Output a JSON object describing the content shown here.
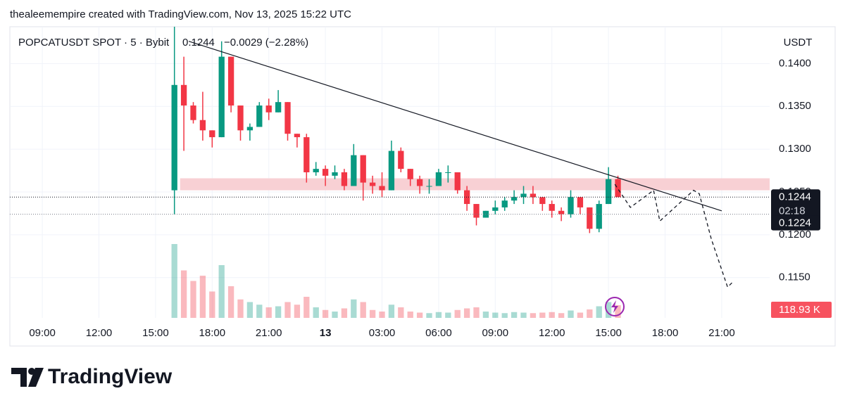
{
  "header": "thealeemempire created with TradingView.com, Nov 13, 2025 15:22 UTC",
  "brand": "TradingView",
  "chart_data": {
    "type": "candlestick",
    "currency": "USDT",
    "legend_change": "−0.0029 (−2.28%)",
    "last_price": 0.1244,
    "countdown": "02:18",
    "low_tag": 0.1224,
    "x": [
      7,
      7.5,
      8,
      8.5,
      9,
      9.5,
      10,
      10.5,
      11,
      11.5,
      12,
      12.5,
      13,
      13.5,
      14,
      14.5,
      15,
      15.5,
      16,
      16.5,
      17,
      17.5,
      18,
      18.5,
      19,
      19.5,
      20,
      20.5,
      21,
      21.5,
      22,
      22.5,
      23,
      23.5,
      24,
      24.5,
      25,
      25.5,
      26,
      26.5,
      27,
      27.5,
      28,
      28.5,
      29,
      29.5,
      30,
      30.5
    ],
    "series": [
      {
        "name": "POPCATUSDT SPOT · 5 · Bybit",
        "up_color": "#089981",
        "down_color": "#f23645",
        "open": [
          0.1252,
          0.1375,
          0.1351,
          0.1334,
          0.1322,
          0.1314,
          0.1408,
          0.1351,
          0.1322,
          0.1326,
          0.1351,
          0.1343,
          0.1355,
          0.1318,
          0.1314,
          0.1273,
          0.1277,
          0.1269,
          0.1273,
          0.1257,
          0.1293,
          0.1261,
          0.1257,
          0.1252,
          0.1298,
          0.1277,
          0.1265,
          0.1257,
          0.1257,
          0.1273,
          0.1273,
          0.1252,
          0.1236,
          0.122,
          0.1228,
          0.1232,
          0.124,
          0.1244,
          0.1248,
          0.1244,
          0.1236,
          0.1228,
          0.1224,
          0.1244,
          0.1232,
          0.1207,
          0.1236,
          0.1265
        ],
        "high": [
          0.1443,
          0.1408,
          0.1355,
          0.1367,
          0.1322,
          0.1426,
          0.1408,
          0.1351,
          0.133,
          0.1355,
          0.1359,
          0.1369,
          0.1355,
          0.1318,
          0.1318,
          0.1285,
          0.1281,
          0.1281,
          0.1277,
          0.1306,
          0.1293,
          0.1269,
          0.1273,
          0.131,
          0.1302,
          0.1277,
          0.1269,
          0.1265,
          0.1277,
          0.1281,
          0.1273,
          0.1257,
          0.1236,
          0.1228,
          0.124,
          0.1244,
          0.1252,
          0.1257,
          0.1257,
          0.1244,
          0.124,
          0.1232,
          0.1252,
          0.1244,
          0.1232,
          0.124,
          0.1279,
          0.1269
        ],
        "low": [
          0.1224,
          0.1298,
          0.133,
          0.131,
          0.1302,
          0.1314,
          0.1343,
          0.131,
          0.131,
          0.1326,
          0.1334,
          0.1343,
          0.131,
          0.1302,
          0.1261,
          0.1269,
          0.1257,
          0.1265,
          0.1252,
          0.1257,
          0.124,
          0.1248,
          0.1244,
          0.1252,
          0.1273,
          0.1257,
          0.1248,
          0.1248,
          0.1257,
          0.1261,
          0.1248,
          0.1228,
          0.1211,
          0.122,
          0.1224,
          0.1228,
          0.1236,
          0.1236,
          0.1236,
          0.1228,
          0.122,
          0.1216,
          0.122,
          0.1224,
          0.1202,
          0.1203,
          0.1236,
          0.1244
        ],
        "close": [
          0.1375,
          0.1351,
          0.1334,
          0.1322,
          0.1314,
          0.1408,
          0.1351,
          0.1322,
          0.1326,
          0.1351,
          0.1343,
          0.1355,
          0.1318,
          0.1314,
          0.1273,
          0.1277,
          0.1269,
          0.1273,
          0.1257,
          0.1293,
          0.1261,
          0.1257,
          0.1252,
          0.1298,
          0.1277,
          0.1265,
          0.1257,
          0.1257,
          0.1273,
          0.1273,
          0.1252,
          0.1236,
          0.122,
          0.1228,
          0.1232,
          0.124,
          0.1244,
          0.1248,
          0.1244,
          0.1236,
          0.1228,
          0.1224,
          0.1244,
          0.1232,
          0.1207,
          0.1236,
          0.1265,
          0.1244
        ],
        "volume": [
          1400,
          900,
          700,
          800,
          500,
          1000,
          600,
          350,
          300,
          250,
          200,
          220,
          300,
          250,
          400,
          200,
          150,
          120,
          180,
          350,
          300,
          150,
          120,
          250,
          200,
          120,
          100,
          90,
          110,
          100,
          150,
          180,
          200,
          120,
          100,
          90,
          110,
          100,
          90,
          100,
          110,
          90,
          140,
          100,
          160,
          220,
          300,
          240
        ]
      }
    ],
    "current_volume": {
      "value": 118.93,
      "label": "118.93 K"
    },
    "volume_ylim": [
      0,
      1600
    ],
    "xlim": [
      -1.72,
      38.54
    ],
    "xticks": [
      {
        "value": 0,
        "label": "09:00"
      },
      {
        "value": 3,
        "label": "12:00"
      },
      {
        "value": 6,
        "label": "15:00"
      },
      {
        "value": 9,
        "label": "18:00"
      },
      {
        "value": 12,
        "label": "21:00"
      },
      {
        "value": 15,
        "label": "13"
      },
      {
        "value": 18,
        "label": "03:00"
      },
      {
        "value": 21,
        "label": "06:00"
      },
      {
        "value": 24,
        "label": "09:00"
      },
      {
        "value": 27,
        "label": "12:00"
      },
      {
        "value": 30,
        "label": "15:00"
      },
      {
        "value": 33,
        "label": "18:00"
      },
      {
        "value": 36,
        "label": "21:00"
      }
    ],
    "ylim": [
      0.1103,
      0.1443
    ],
    "yticks": [
      {
        "value": 0.115,
        "label": "0.1150"
      },
      {
        "value": 0.12,
        "label": "0.1200"
      },
      {
        "value": 0.125,
        "label": "0.1250"
      },
      {
        "value": 0.13,
        "label": "0.1300"
      },
      {
        "value": 0.135,
        "label": "0.1350"
      },
      {
        "value": 0.14,
        "label": "0.1400"
      }
    ],
    "grid": true,
    "zone": {
      "x": [
        7.3,
        38.54
      ],
      "y": [
        0.1252,
        0.1266
      ],
      "color": "#f8d0d4"
    },
    "trendline": {
      "x": [
        7.76,
        36.0
      ],
      "y": [
        0.1426,
        0.1228
      ]
    },
    "projection": {
      "x": [
        30.34,
        31.16,
        32.39,
        32.72,
        34.51,
        34.81,
        35.45,
        36.31,
        36.64
      ],
      "y": [
        0.1259,
        0.1232,
        0.1252,
        0.1216,
        0.1252,
        0.1248,
        0.1195,
        0.1139,
        0.1146
      ]
    }
  }
}
